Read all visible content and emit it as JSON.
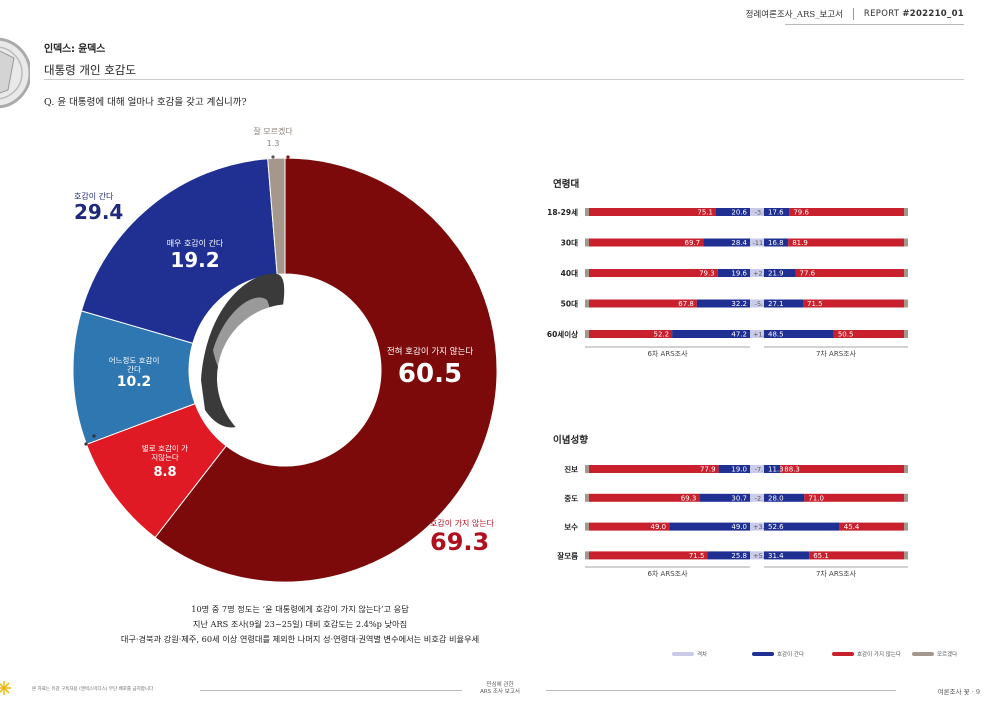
{
  "header": {
    "series_title": "정례여론조사_ARS_보고서",
    "report_prefix": "REPORT",
    "report_no": "#202210_01"
  },
  "section": {
    "label": "인덱스: 윤덱스",
    "title": "대통령 개인 호감도",
    "question": "Q.  윤 대통령에 대해 얼마나 호감을 갖고 계십니까?"
  },
  "colors": {
    "very_unfavorable": "#7d0a0a",
    "somewhat_unfavorable": "#e01a24",
    "somewhat_favorable": "#2f77b0",
    "very_favorable": "#1f2f92",
    "dont_know": "#a5978c",
    "change": "#c9cbe8",
    "fav_total_text": "#1f2a7a",
    "unfav_total_text": "#b0101e"
  },
  "chart_data": [
    {
      "type": "pie",
      "subtype": "donut",
      "slices": [
        {
          "label": "전혀 호감이 가지 않는다",
          "value": 60.5,
          "color": "#7d0a0a"
        },
        {
          "label": "별로 호감이 가지않는다",
          "value": 8.8,
          "color": "#e01a24"
        },
        {
          "label": "어느정도 호감이 간다",
          "value": 10.2,
          "color": "#2f77b0"
        },
        {
          "label": "매우 호감이 간다",
          "value": 19.2,
          "color": "#1f2f92"
        },
        {
          "label": "잘 모르겠다",
          "value": 1.3,
          "color": "#a5978c"
        }
      ],
      "totals": [
        {
          "label": "호감이 간다",
          "value": 29.4
        },
        {
          "label": "호감이 가지 않는다",
          "value": 69.3
        }
      ]
    },
    {
      "type": "bar",
      "subtype": "diverging-stacked",
      "title": "연령대",
      "left_axis_label": "6차 ARS조사",
      "right_axis_label": "7차 ARS조사",
      "categories": [
        "18-29세",
        "30대",
        "40대",
        "50대",
        "60세이상"
      ],
      "series": [
        {
          "name": "호감이 가지 않는다",
          "values_6th": [
            75.1,
            69.7,
            79.3,
            67.8,
            52.2
          ],
          "values_7th": [
            79.6,
            81.9,
            77.6,
            71.5,
            50.5
          ]
        },
        {
          "name": "호감이 간다",
          "values_6th": [
            20.6,
            28.4,
            19.6,
            32.2,
            47.2
          ],
          "values_7th": [
            17.6,
            16.8,
            21.9,
            27.1,
            48.5
          ]
        },
        {
          "name": "격차",
          "values": [
            "-3.0",
            "-11.6",
            "+2.3",
            "-5.1",
            "+1.3"
          ]
        }
      ]
    },
    {
      "type": "bar",
      "subtype": "diverging-stacked",
      "title": "이념성향",
      "left_axis_label": "6차 ARS조사",
      "right_axis_label": "7차 ARS조사",
      "categories": [
        "진보",
        "중도",
        "보수",
        "잘모름"
      ],
      "series": [
        {
          "name": "호감이 가지 않는다",
          "values_6th": [
            77.9,
            69.3,
            49.0,
            71.5
          ],
          "values_7th": [
            88.3,
            71.0,
            45.4,
            65.1
          ]
        },
        {
          "name": "호감이 간다",
          "values_6th": [
            19.0,
            30.7,
            49.0,
            25.8
          ],
          "values_7th": [
            11.3,
            28.0,
            52.6,
            31.4
          ]
        },
        {
          "name": "격차",
          "values": [
            "-7.7",
            "-2.7",
            "+3.6",
            "+5.6"
          ]
        }
      ]
    }
  ],
  "summary": [
    "10명 중 7명 정도는 ‘윤 대통령에게 호감이 가지 않는다’고 응답",
    "지난 ARS 조사(9월 23~25일) 대비 호감도는 2.4%p 낮아짐",
    "대구·경북과 강원·제주, 60세 이상 연령대를 제외한 나머지 성·연령대·권역별 변수에서는 비호감 비율우세"
  ],
  "legend": [
    "격차",
    "호감이 간다",
    "호감이 가지 않는다",
    "모르겠다"
  ],
  "footer": {
    "left": "본 자료는 유감 구독자용 (엔빅스미디스) 무단 배포를 금지합니다",
    "center_line1": "민심에 관한",
    "center_line2": "ARS 조사 보고서",
    "right": "여론조사 꽃 · 9"
  }
}
